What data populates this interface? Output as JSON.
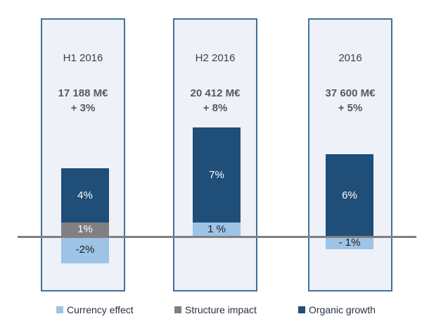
{
  "chart_data": {
    "type": "bar",
    "stacked": true,
    "orientation": "vertical",
    "categories": [
      "H1 2016",
      "H2 2016",
      "2016"
    ],
    "series": [
      {
        "name": "Currency effect",
        "color": "#9DC3E6",
        "values": [
          -2,
          1,
          -1
        ]
      },
      {
        "name": "Structure impact",
        "color": "#808080",
        "values": [
          1,
          0,
          0
        ]
      },
      {
        "name": "Organic growth",
        "color": "#1F4E79",
        "values": [
          4,
          7,
          6
        ]
      }
    ],
    "zero_baseline": true,
    "grid": "off",
    "legend_position": "bottom",
    "panels": [
      {
        "title": "H1 2016",
        "revenue": "17 188 M€",
        "growth": "+ 3%",
        "segments": {
          "organic": {
            "label": "4%",
            "value": 4
          },
          "structure": {
            "label": "1%",
            "value": 1
          },
          "currency": {
            "label": "-2%",
            "value": -2
          }
        }
      },
      {
        "title": "H2 2016",
        "revenue": "20 412 M€",
        "growth": "+ 8%",
        "segments": {
          "organic": {
            "label": "7%",
            "value": 7
          },
          "currency": {
            "label": "1 %",
            "value": 1
          }
        }
      },
      {
        "title": "2016",
        "revenue": "37 600 M€",
        "growth": "+ 5%",
        "segments": {
          "organic": {
            "label": "6%",
            "value": 6
          },
          "currency": {
            "label": "- 1%",
            "value": -1
          }
        }
      }
    ]
  },
  "legend": {
    "items": [
      {
        "label": "Currency effect",
        "color": "#9DC3E6"
      },
      {
        "label": "Structure impact",
        "color": "#808080"
      },
      {
        "label": "Organic growth",
        "color": "#1F4E79"
      }
    ]
  },
  "colors": {
    "panel_bg": "#EEF1F7",
    "panel_border": "#41719C",
    "zero_line": "#808080",
    "title_text": "#404040",
    "value_text": "#595959"
  }
}
